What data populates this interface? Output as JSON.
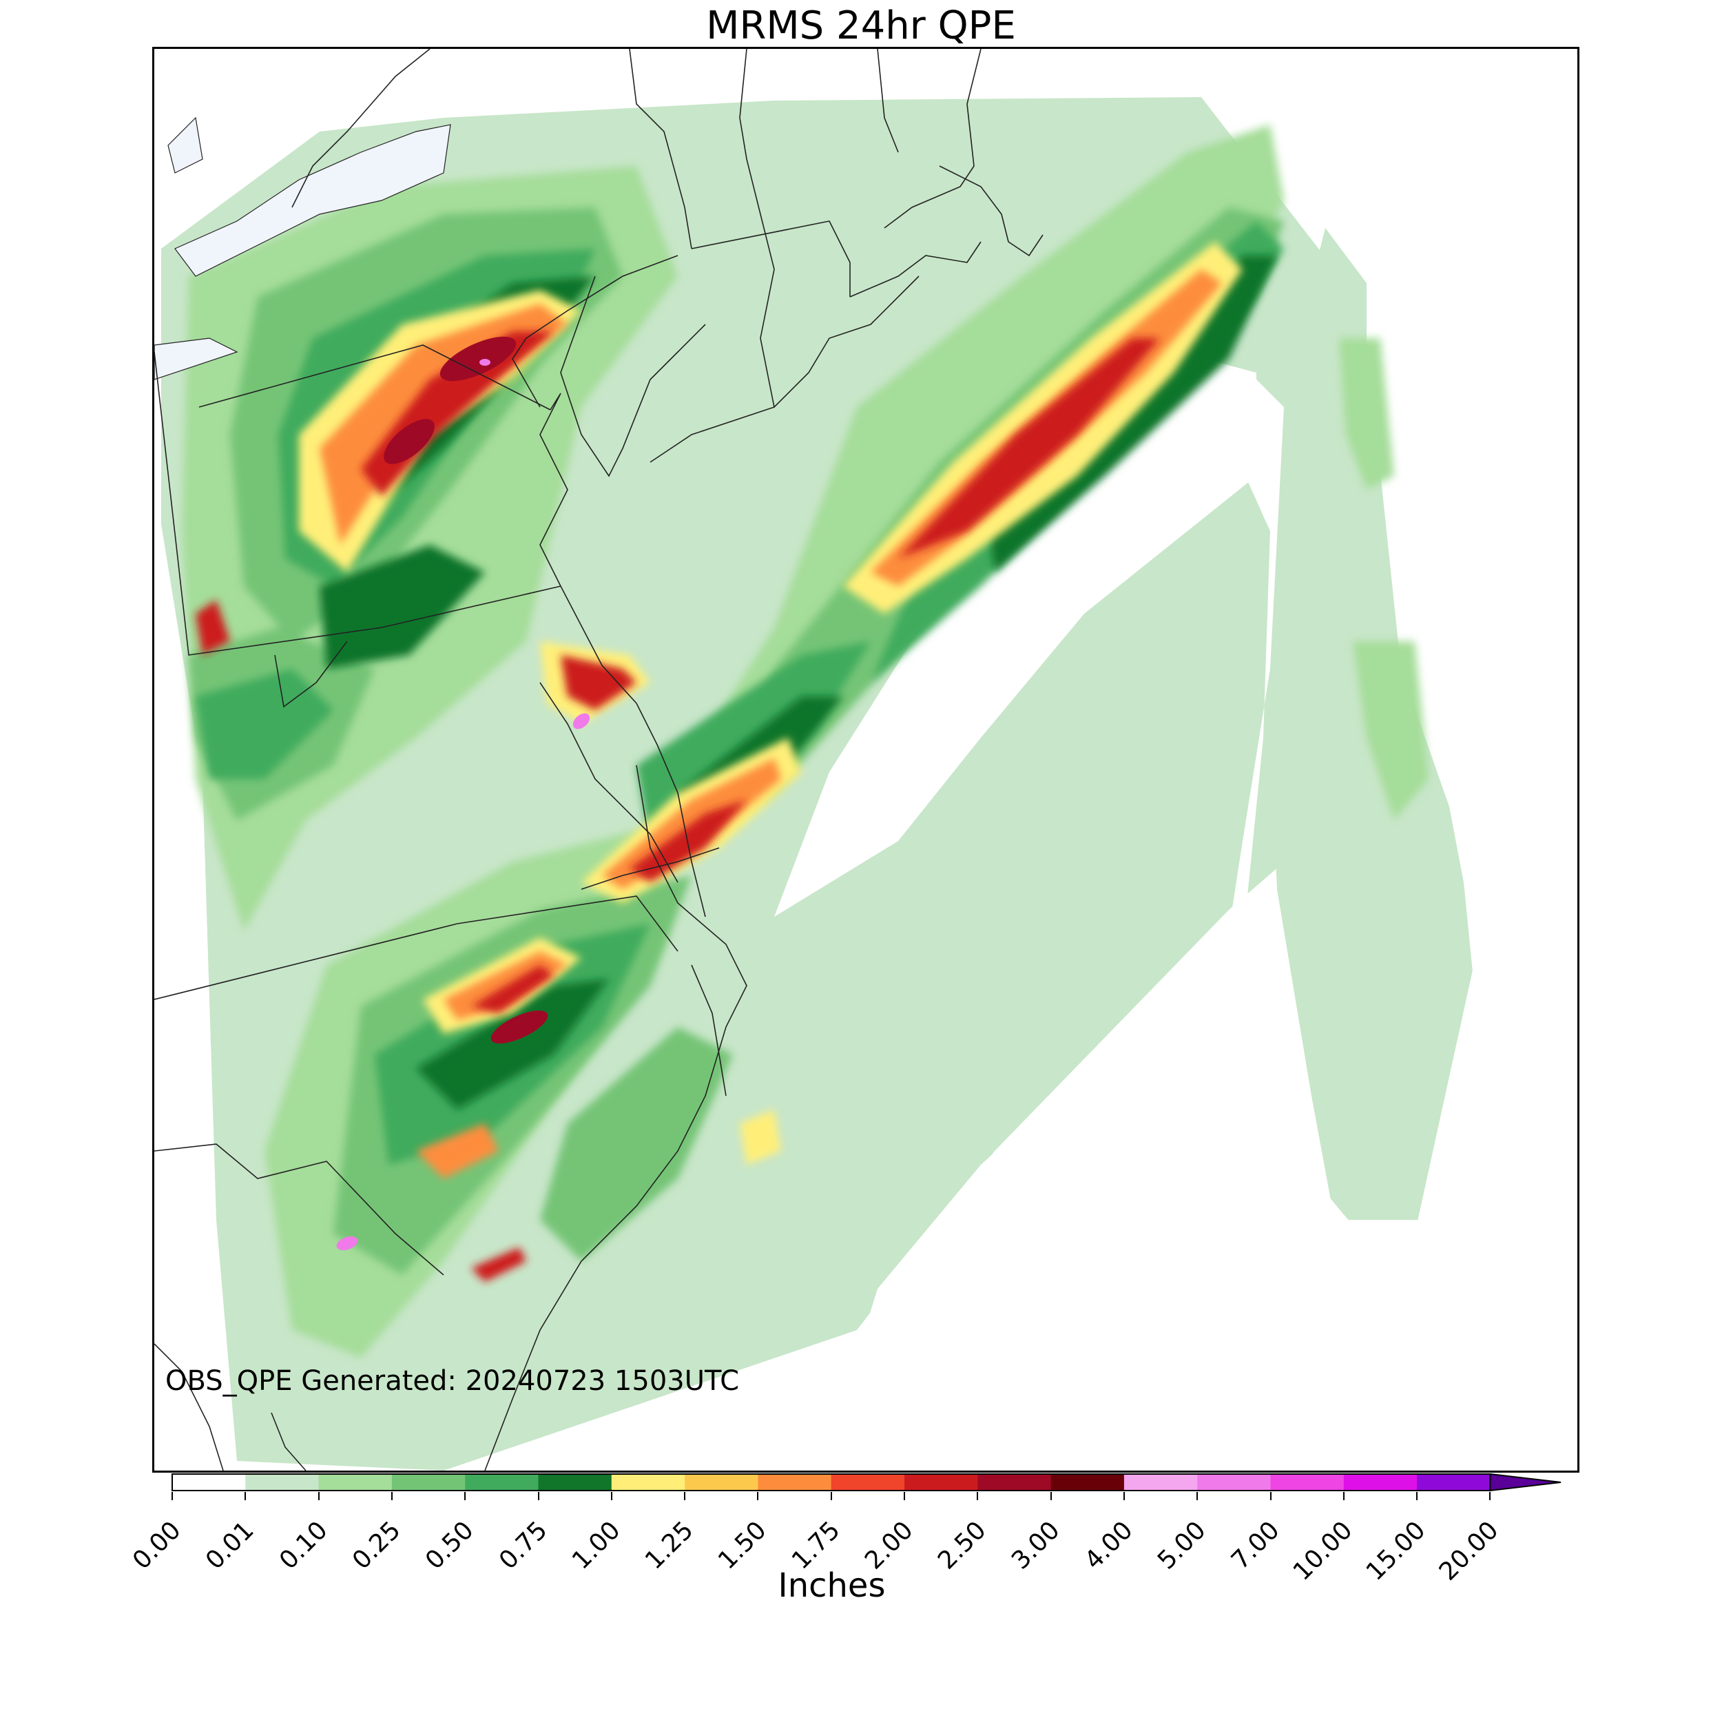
{
  "title": "MRMS 24hr QPE",
  "generated": "OBS_QPE Generated: 20240723 1503UTC",
  "colorbar": {
    "label": "Inches",
    "extend": "max",
    "ticks": [
      "0.00",
      "0.01",
      "0.10",
      "0.25",
      "0.50",
      "0.75",
      "1.00",
      "1.25",
      "1.50",
      "1.75",
      "2.00",
      "2.50",
      "3.00",
      "4.00",
      "5.00",
      "7.00",
      "10.00",
      "15.00",
      "20.00"
    ],
    "colors": [
      "#ffffff",
      "#c8e6c9",
      "#a5dd9a",
      "#74c476",
      "#41ab5d",
      "#11752a",
      "#ffef79",
      "#fdc94d",
      "#fd8d3c",
      "#f0442b",
      "#cc1b1f",
      "#9e0a26",
      "#680008",
      "#f4a6ef",
      "#f07aea",
      "#ef45e4",
      "#de10e8",
      "#8f0ad9"
    ]
  },
  "map": {
    "ocean_color": "#ffffff",
    "lake_color": "#f0f4fb",
    "boundary_color": "#222222"
  }
}
